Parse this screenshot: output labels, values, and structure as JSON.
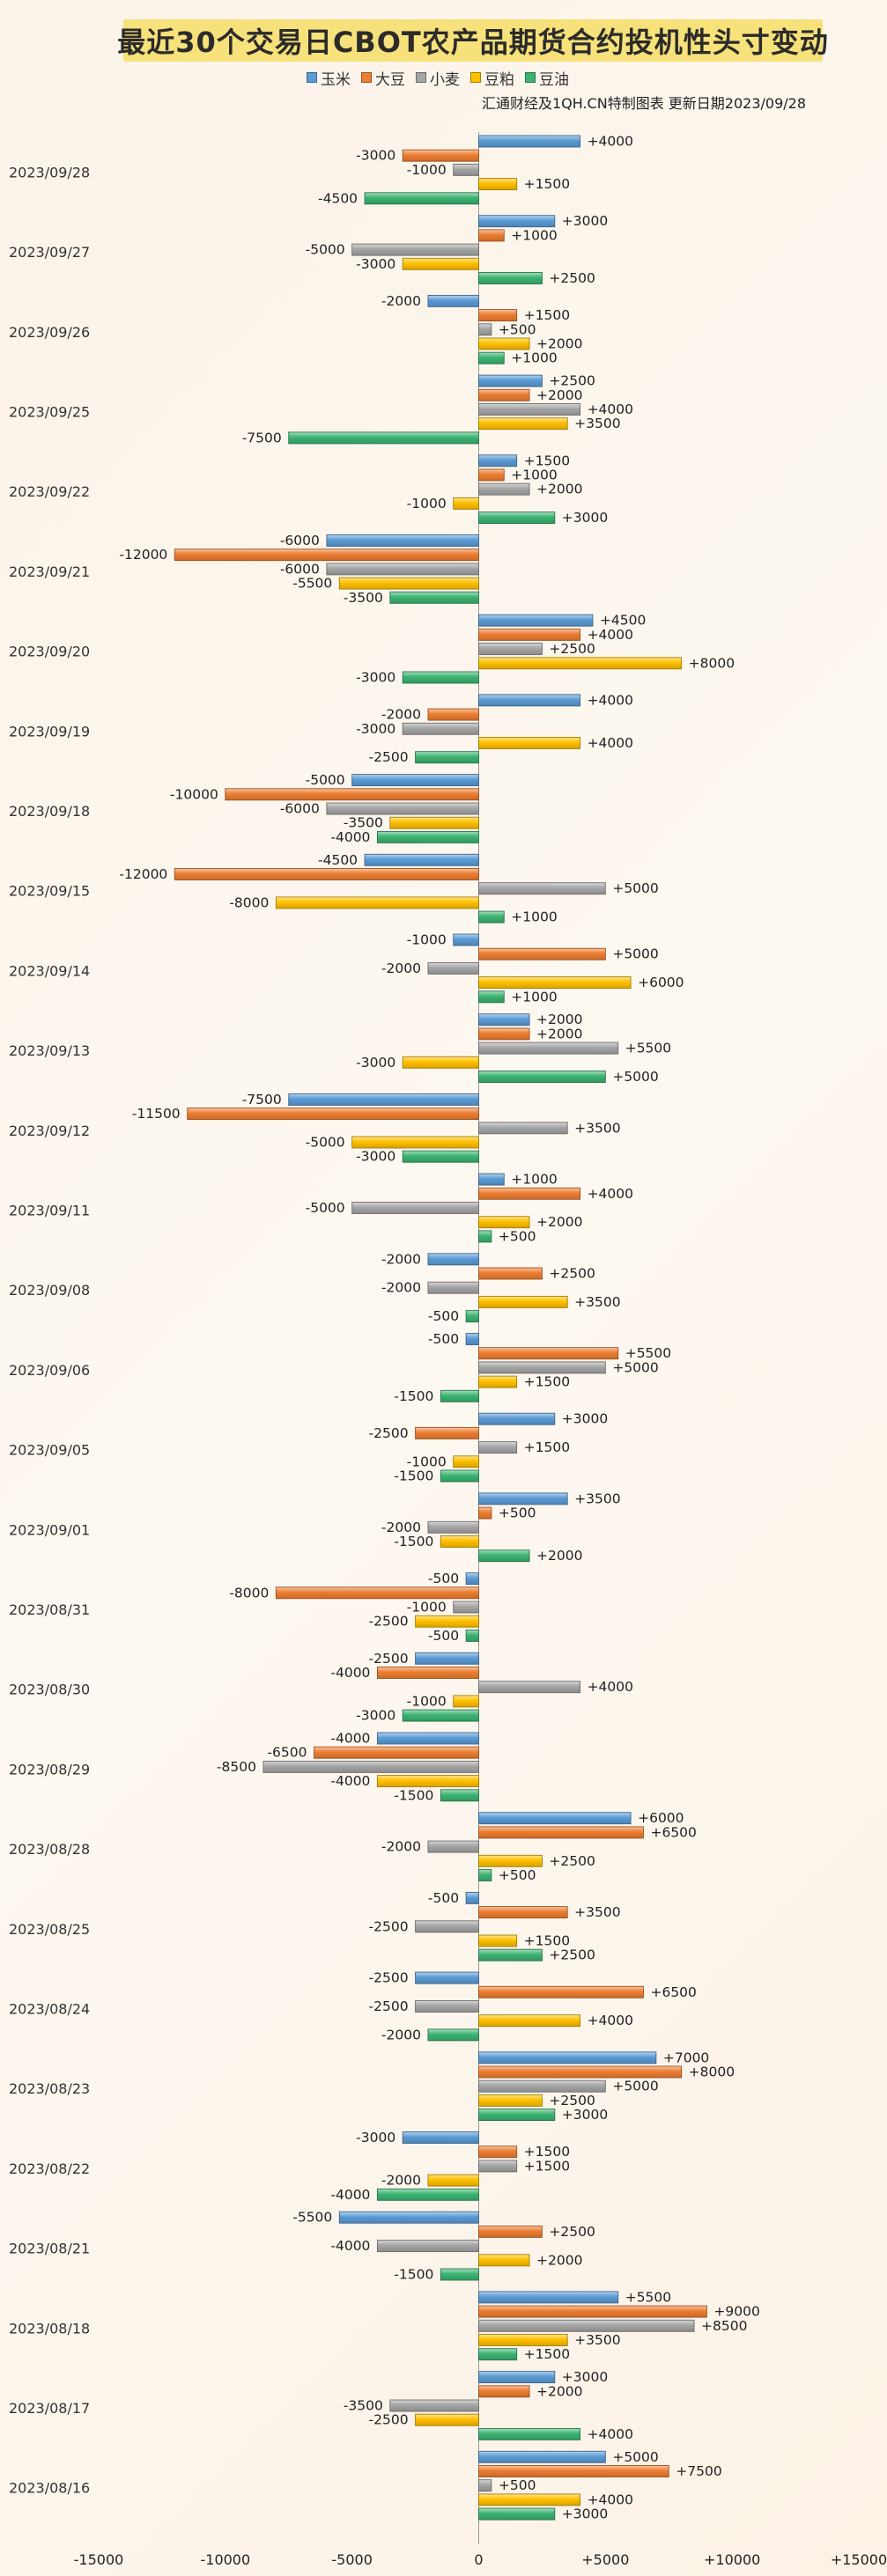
{
  "chart_data": {
    "type": "bar",
    "orientation": "horizontal",
    "title": "最近30个交易日CBOT农产品期货合约投机性头寸变动",
    "source": "汇通财经及1QH.CN特制图表 更新日期2023/09/28",
    "categories": [
      "2023/09/28",
      "2023/09/27",
      "2023/09/26",
      "2023/09/25",
      "2023/09/22",
      "2023/09/21",
      "2023/09/20",
      "2023/09/19",
      "2023/09/18",
      "2023/09/15",
      "2023/09/14",
      "2023/09/13",
      "2023/09/12",
      "2023/09/11",
      "2023/09/08",
      "2023/09/06",
      "2023/09/05",
      "2023/09/01",
      "2023/08/31",
      "2023/08/30",
      "2023/08/29",
      "2023/08/28",
      "2023/08/25",
      "2023/08/24",
      "2023/08/23",
      "2023/08/22",
      "2023/08/21",
      "2023/08/18",
      "2023/08/17",
      "2023/08/16"
    ],
    "series": [
      {
        "name": "玉米",
        "color": "#5b9bd5",
        "values": [
          4000,
          3000,
          -2000,
          2500,
          1500,
          -6000,
          4500,
          4000,
          -5000,
          -4500,
          -1000,
          2000,
          -7500,
          1000,
          -2000,
          -500,
          3000,
          3500,
          -500,
          -2500,
          -4000,
          6000,
          -500,
          -2500,
          7000,
          -3000,
          -5500,
          5500,
          3000,
          5000
        ]
      },
      {
        "name": "大豆",
        "color": "#ed7d31",
        "values": [
          -3000,
          1000,
          1500,
          2000,
          1000,
          -12000,
          4000,
          -2000,
          -10000,
          -12000,
          5000,
          2000,
          -11500,
          4000,
          2500,
          5500,
          -2500,
          500,
          -8000,
          -4000,
          -6500,
          6500,
          3500,
          6500,
          8000,
          1500,
          2500,
          9000,
          2000,
          7500
        ]
      },
      {
        "name": "小麦",
        "color": "#a5a5a5",
        "values": [
          -1000,
          -5000,
          500,
          4000,
          2000,
          -6000,
          2500,
          -3000,
          -6000,
          5000,
          -2000,
          5500,
          3500,
          -5000,
          -2000,
          5000,
          1500,
          -2000,
          -1000,
          4000,
          -8500,
          -2000,
          -2500,
          -2500,
          5000,
          1500,
          -4000,
          8500,
          -3500,
          500
        ]
      },
      {
        "name": "豆粕",
        "color": "#ffc000",
        "values": [
          1500,
          -3000,
          2000,
          3500,
          -1000,
          -5500,
          8000,
          4000,
          -3500,
          -8000,
          6000,
          -3000,
          -5000,
          2000,
          3500,
          1500,
          -1000,
          -1500,
          -2500,
          -1000,
          -4000,
          2500,
          1500,
          4000,
          2500,
          -2000,
          2000,
          3500,
          -2500,
          4000
        ]
      },
      {
        "name": "豆油",
        "color": "#3cb371",
        "values": [
          -4500,
          2500,
          1000,
          -7500,
          3000,
          -3500,
          -3000,
          -2500,
          -4000,
          1000,
          1000,
          5000,
          -3000,
          500,
          -500,
          -1500,
          -1500,
          2000,
          -500,
          -3000,
          -1500,
          500,
          2500,
          -2000,
          3000,
          -4000,
          -1500,
          1500,
          4000,
          3000
        ]
      }
    ],
    "xlim": [
      -15000,
      15000
    ],
    "xticks": [
      -15000,
      -10000,
      -5000,
      0,
      5000,
      10000,
      15000
    ],
    "xtick_labels": [
      "-15000",
      "-10000",
      "-5000",
      "0",
      "+5000",
      "+10000",
      "+15000"
    ],
    "grid": false,
    "legend_position": "top-center"
  }
}
